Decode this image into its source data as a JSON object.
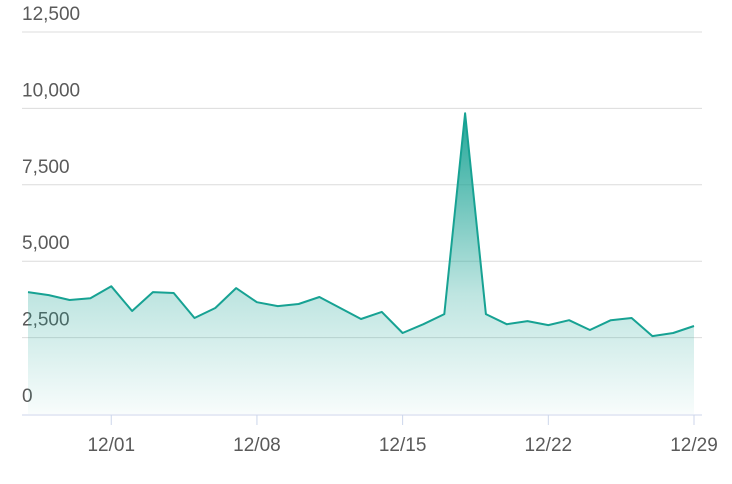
{
  "chart_data": {
    "type": "area",
    "categories": [
      null,
      null,
      null,
      null,
      "12/01",
      null,
      null,
      null,
      null,
      null,
      null,
      "12/08",
      null,
      null,
      null,
      null,
      null,
      null,
      "12/15",
      null,
      null,
      null,
      null,
      null,
      null,
      "12/22",
      null,
      null,
      null,
      null,
      null,
      null,
      "12/29"
    ],
    "series": [
      {
        "color": "#17a293",
        "values": [
          3990,
          3890,
          3730,
          3790,
          4180,
          3370,
          3990,
          3960,
          3140,
          3470,
          4120,
          3660,
          3530,
          3600,
          3830,
          3470,
          3110,
          3340,
          2650,
          2940,
          3270,
          9840,
          3270,
          2940,
          3040,
          2910,
          3070,
          2750,
          3070,
          3140,
          2550,
          2650,
          2880
        ]
      }
    ],
    "ylim": [
      0,
      12500
    ],
    "yticks": [
      0,
      {
        "value": 2500,
        "label": "2,500"
      },
      {
        "value": 5000,
        "label": "5,000"
      },
      {
        "value": 7500,
        "label": "7,500"
      },
      {
        "value": 10000,
        "label": "10,000"
      },
      {
        "value": 12500,
        "label": "12,500"
      }
    ],
    "grid": true
  }
}
